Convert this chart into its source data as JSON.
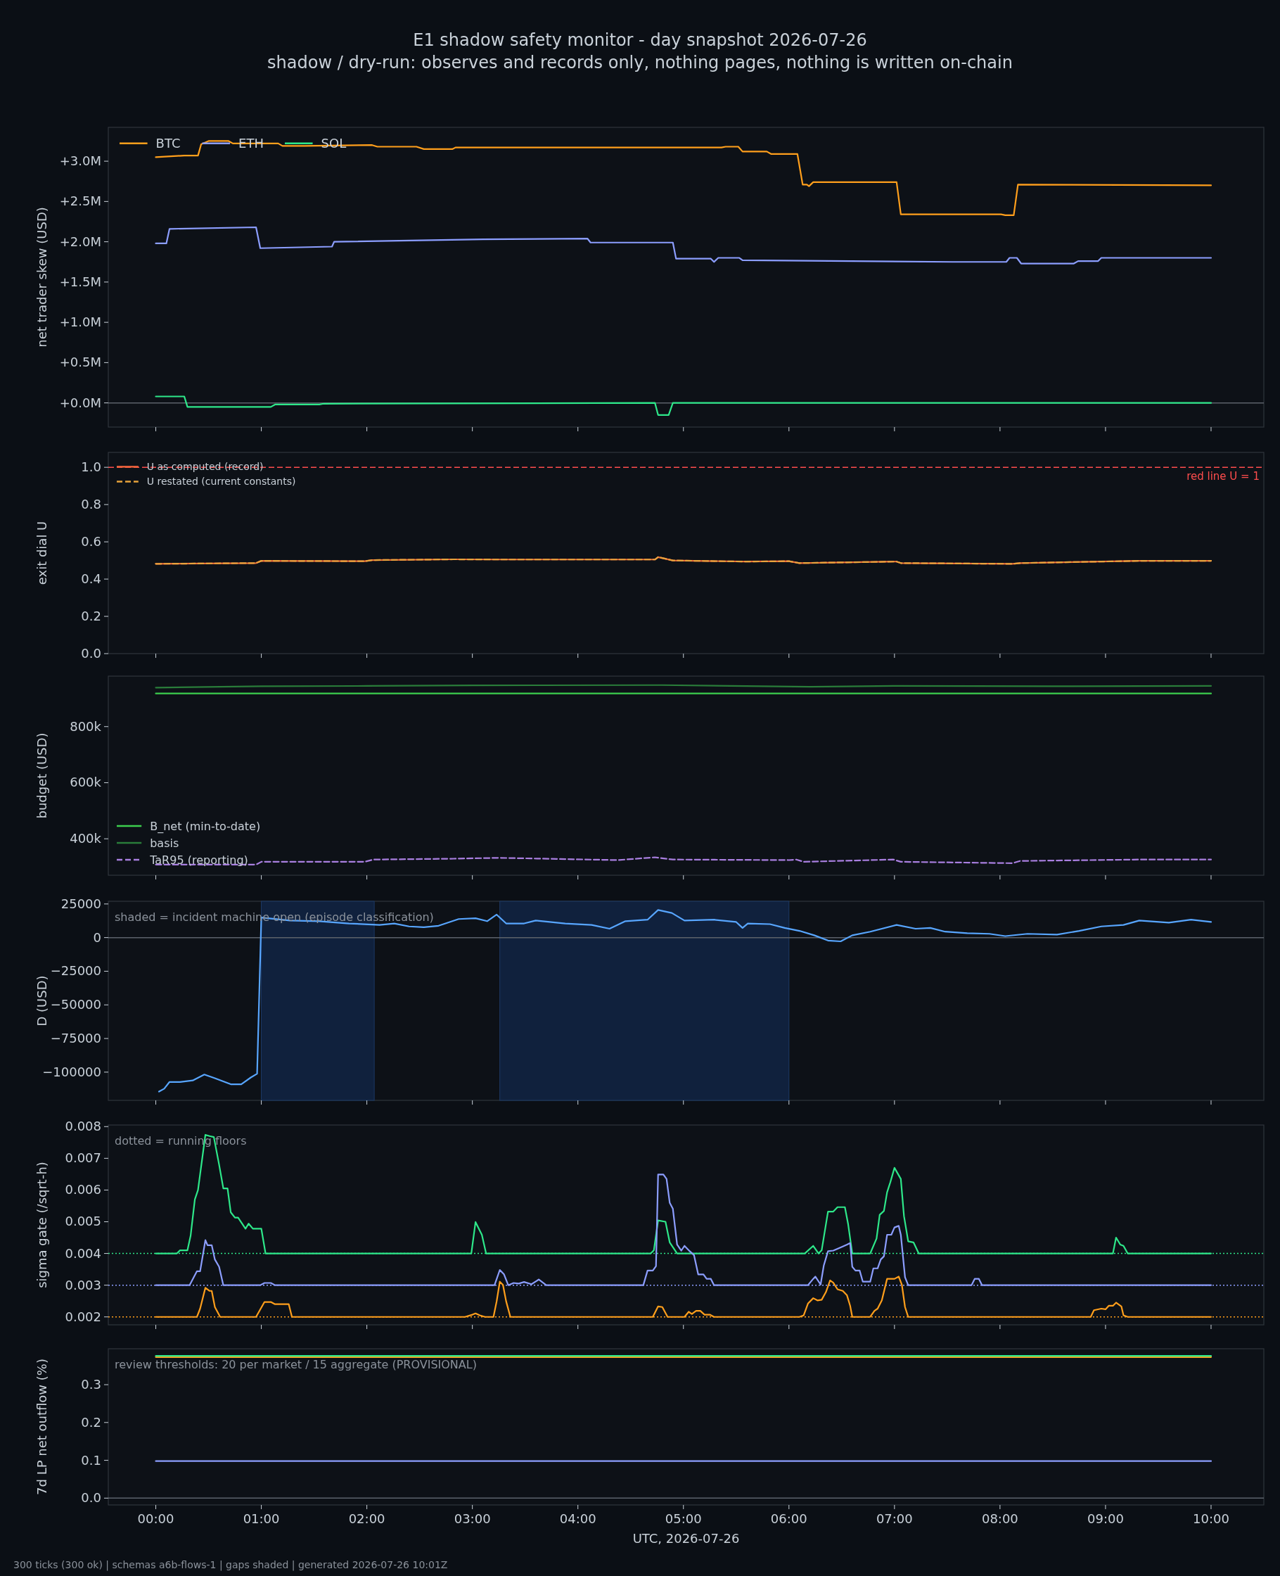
{
  "chart_data": [
    {
      "type": "line",
      "title": "E1 shadow safety monitor - day snapshot 2026-07-26",
      "subtitle": "shadow / dry-run: observes and records only, nothing pages, nothing is written on-chain",
      "ylabel": "net trader skew (USD)",
      "legend": "top left",
      "tick_labels": "y",
      "xlim": [
        -0.45,
        10.5
      ],
      "xticks": [
        {
          "value": 0,
          "label": null
        },
        {
          "value": 1,
          "label": null
        },
        {
          "value": 2,
          "label": null
        },
        {
          "value": 3,
          "label": null
        },
        {
          "value": 4,
          "label": null
        },
        {
          "value": 5,
          "label": null
        },
        {
          "value": 6,
          "label": null
        },
        {
          "value": 7,
          "label": null
        },
        {
          "value": 8,
          "label": null
        },
        {
          "value": 9,
          "label": null
        },
        {
          "value": 10,
          "label": null
        }
      ],
      "ylim": [
        -300000,
        3420000
      ],
      "yticks": [
        {
          "value": 0,
          "label": "+0.0M"
        },
        {
          "value": 500000,
          "label": "+0.5M"
        },
        {
          "value": 1000000,
          "label": "+1.0M"
        },
        {
          "value": 1500000,
          "label": "+1.5M"
        },
        {
          "value": 2000000,
          "label": "+2.0M"
        },
        {
          "value": 2500000,
          "label": "+2.5M"
        },
        {
          "value": 3000000,
          "label": "+3.0M"
        }
      ],
      "ref_lines": [
        {
          "axis": "y",
          "value": 0,
          "color": "#5c626b",
          "line_style": "solid"
        }
      ],
      "series": [
        {
          "name": "BTC",
          "color": "#ff9f1c",
          "x": [
            0,
            0.27,
            0.4,
            0.43,
            0.5,
            0.69,
            0.73,
            1.16,
            1.2,
            1.41,
            2.05,
            2.1,
            2.47,
            2.54,
            2.81,
            2.84,
            5.36,
            5.4,
            5.52,
            5.56,
            5.79,
            5.83,
            6.08,
            6.13,
            6.17,
            6.19,
            6.23,
            7.02,
            7.06,
            8.01,
            8.05,
            8.13,
            8.17,
            10
          ],
          "values": [
            3050000,
            3070000,
            3070000,
            3210000,
            3250000,
            3250000,
            3220000,
            3220000,
            3190000,
            3190000,
            3200000,
            3180000,
            3180000,
            3150000,
            3150000,
            3170000,
            3170000,
            3180000,
            3180000,
            3120000,
            3120000,
            3090000,
            3090000,
            2710000,
            2710000,
            2690000,
            2740000,
            2740000,
            2340000,
            2340000,
            2330000,
            2330000,
            2710000,
            2700000
          ]
        },
        {
          "name": "ETH",
          "color": "#8c9eff",
          "x": [
            0,
            0.1,
            0.13,
            0.95,
            0.99,
            1.67,
            1.69,
            3.1,
            4.09,
            4.12,
            4.9,
            4.93,
            5.26,
            5.29,
            5.33,
            5.53,
            5.56,
            7.55,
            8.06,
            8.09,
            8.16,
            8.2,
            8.7,
            8.74,
            8.93,
            8.96,
            10
          ],
          "values": [
            1980000,
            1980000,
            2160000,
            2180000,
            1920000,
            1940000,
            2000000,
            2030000,
            2040000,
            1990000,
            1990000,
            1790000,
            1790000,
            1750000,
            1800000,
            1800000,
            1770000,
            1750000,
            1750000,
            1800000,
            1800000,
            1730000,
            1730000,
            1760000,
            1760000,
            1800000,
            1800000
          ]
        },
        {
          "name": "SOL",
          "color": "#2ee88a",
          "x": [
            0,
            0.27,
            0.3,
            1.09,
            1.13,
            1.55,
            1.59,
            4.73,
            4.76,
            4.86,
            4.9,
            10
          ],
          "values": [
            80000,
            80000,
            -50000,
            -50000,
            -20000,
            -20000,
            -10000,
            0,
            -150000,
            -150000,
            0,
            0
          ]
        }
      ]
    },
    {
      "type": "line",
      "ylabel": "exit dial U",
      "legend": "top left",
      "tick_labels": "y",
      "xlim": [
        -0.45,
        10.5
      ],
      "xticks": [
        {
          "value": 0,
          "label": null
        },
        {
          "value": 1,
          "label": null
        },
        {
          "value": 2,
          "label": null
        },
        {
          "value": 3,
          "label": null
        },
        {
          "value": 4,
          "label": null
        },
        {
          "value": 5,
          "label": null
        },
        {
          "value": 6,
          "label": null
        },
        {
          "value": 7,
          "label": null
        },
        {
          "value": 8,
          "label": null
        },
        {
          "value": 9,
          "label": null
        },
        {
          "value": 10,
          "label": null
        }
      ],
      "ylim": [
        0,
        1.08
      ],
      "yticks": [
        {
          "value": 0,
          "label": "0.0"
        },
        {
          "value": 0.2,
          "label": "0.2"
        },
        {
          "value": 0.4,
          "label": "0.4"
        },
        {
          "value": 0.6,
          "label": "0.6"
        },
        {
          "value": 0.8,
          "label": "0.8"
        },
        {
          "value": 1,
          "label": "1.0"
        }
      ],
      "ref_lines": [
        {
          "axis": "y",
          "value": 1,
          "label": "red line U = 1",
          "color": "#ff4d4d",
          "line_style": "dashed"
        }
      ],
      "series": [
        {
          "name": "U as computed (record)",
          "color": "#f0643c",
          "line_style": "solid",
          "x": [
            0,
            0.95,
            1.0,
            1.98,
            2.05,
            2.82,
            3.25,
            4.73,
            4.76,
            4.9,
            5.58,
            6.0,
            6.1,
            7.02,
            7.06,
            8.12,
            8.19,
            9.32,
            10
          ],
          "values": [
            0.482,
            0.486,
            0.498,
            0.496,
            0.502,
            0.506,
            0.505,
            0.505,
            0.518,
            0.5,
            0.494,
            0.496,
            0.486,
            0.494,
            0.486,
            0.482,
            0.486,
            0.498,
            0.498
          ]
        },
        {
          "name": "U restated (current constants)",
          "color": "#e8a33c",
          "line_style": "dashed",
          "x": [
            0,
            0.95,
            1.0,
            1.98,
            2.05,
            2.82,
            3.25,
            4.73,
            4.76,
            4.9,
            5.58,
            6.0,
            6.1,
            7.02,
            7.06,
            8.12,
            8.19,
            9.32,
            10
          ],
          "values": [
            0.482,
            0.486,
            0.498,
            0.496,
            0.502,
            0.506,
            0.505,
            0.505,
            0.518,
            0.5,
            0.494,
            0.496,
            0.486,
            0.494,
            0.486,
            0.482,
            0.486,
            0.498,
            0.498
          ]
        }
      ]
    },
    {
      "type": "line",
      "ylabel": "budget (USD)",
      "legend": "bottom left",
      "tick_labels": "y",
      "xlim": [
        -0.45,
        10.5
      ],
      "xticks": [
        {
          "value": 0,
          "label": null
        },
        {
          "value": 1,
          "label": null
        },
        {
          "value": 2,
          "label": null
        },
        {
          "value": 3,
          "label": null
        },
        {
          "value": 4,
          "label": null
        },
        {
          "value": 5,
          "label": null
        },
        {
          "value": 6,
          "label": null
        },
        {
          "value": 7,
          "label": null
        },
        {
          "value": 8,
          "label": null
        },
        {
          "value": 9,
          "label": null
        },
        {
          "value": 10,
          "label": null
        }
      ],
      "ylim": [
        270000,
        980000
      ],
      "yticks": [
        {
          "value": 400000,
          "label": "400k"
        },
        {
          "value": 600000,
          "label": "600k"
        },
        {
          "value": 800000,
          "label": "800k"
        }
      ],
      "series": [
        {
          "name": "B_net (min-to-date)",
          "color": "#3ccf4e",
          "line_style": "solid",
          "x": [
            0,
            10
          ],
          "values": [
            918000,
            918000
          ]
        },
        {
          "name": "basis",
          "color": "#2a7d3a",
          "line_style": "solid",
          "x": [
            0,
            1,
            2,
            3,
            4.8,
            6.2,
            7,
            8.5,
            10
          ],
          "values": [
            939000,
            944000,
            945000,
            947000,
            948000,
            942000,
            945000,
            944000,
            945000
          ]
        },
        {
          "name": "TaR95 (reporting)",
          "color": "#a97fe0",
          "line_style": "dashed",
          "x": [
            0,
            0.95,
            1.0,
            1.98,
            2.06,
            2.82,
            3.25,
            4.38,
            4.73,
            4.9,
            6.0,
            6.07,
            6.14,
            6.99,
            7.06,
            8.12,
            8.19,
            9.32,
            10
          ],
          "values": [
            308000,
            308000,
            318000,
            318000,
            326000,
            329000,
            332000,
            324000,
            334000,
            326000,
            324000,
            326000,
            318000,
            326000,
            318000,
            313000,
            321000,
            326000,
            326000
          ]
        }
      ]
    },
    {
      "type": "line",
      "ylabel": "D (USD)",
      "tick_labels": "y",
      "annotations": [
        "shaded = incident machine open (episode classification)"
      ],
      "xlim": [
        -0.45,
        10.5
      ],
      "xticks": [
        {
          "value": 0,
          "label": null
        },
        {
          "value": 1,
          "label": null
        },
        {
          "value": 2,
          "label": null
        },
        {
          "value": 3,
          "label": null
        },
        {
          "value": 4,
          "label": null
        },
        {
          "value": 5,
          "label": null
        },
        {
          "value": 6,
          "label": null
        },
        {
          "value": 7,
          "label": null
        },
        {
          "value": 8,
          "label": null
        },
        {
          "value": 9,
          "label": null
        },
        {
          "value": 10,
          "label": null
        }
      ],
      "ylim": [
        -121000,
        27000
      ],
      "yticks": [
        {
          "value": -100000,
          "label": "−100000"
        },
        {
          "value": -75000,
          "label": "−75000"
        },
        {
          "value": -50000,
          "label": "−50000"
        },
        {
          "value": -25000,
          "label": "−25000"
        },
        0,
        25000
      ],
      "bands": [
        {
          "axis": "x",
          "from": 1.0,
          "to": 2.07,
          "color": "#10213d"
        },
        {
          "axis": "x",
          "from": 3.26,
          "to": 6.0,
          "color": "#10213d"
        }
      ],
      "ref_lines": [
        {
          "axis": "y",
          "value": 0,
          "color": "#5c626b",
          "line_style": "solid"
        }
      ],
      "series": [
        {
          "color": "#58a6ff",
          "x": [
            0.03,
            0.08,
            0.13,
            0.23,
            0.35,
            0.46,
            0.56,
            0.71,
            0.81,
            0.9,
            0.96,
            1.0,
            1.27,
            1.55,
            1.83,
            2.12,
            2.26,
            2.4,
            2.54,
            2.68,
            2.87,
            3.03,
            3.14,
            3.23,
            3.32,
            3.49,
            3.6,
            3.88,
            4.13,
            4.3,
            4.45,
            4.66,
            4.76,
            4.89,
            5.01,
            5.29,
            5.5,
            5.56,
            5.61,
            5.82,
            5.96,
            6.1,
            6.24,
            6.37,
            6.49,
            6.6,
            6.77,
            7.02,
            7.2,
            7.34,
            7.48,
            7.69,
            7.9,
            8.05,
            8.26,
            8.54,
            8.75,
            8.96,
            9.17,
            9.32,
            9.6,
            9.81,
            10
          ],
          "values": [
            -114500,
            -112300,
            -107300,
            -107300,
            -106200,
            -101800,
            -104500,
            -109000,
            -109000,
            -104000,
            -101200,
            14900,
            12700,
            12200,
            10500,
            9400,
            10500,
            8300,
            7700,
            8800,
            13800,
            14400,
            12200,
            17100,
            10500,
            10500,
            12700,
            10500,
            9400,
            6600,
            12200,
            13300,
            20500,
            18300,
            12700,
            13300,
            11600,
            7200,
            10500,
            10000,
            7200,
            5000,
            1700,
            -2200,
            -2800,
            1700,
            4400,
            9400,
            6600,
            7200,
            4400,
            3300,
            2800,
            1100,
            2800,
            2200,
            5000,
            8300,
            9400,
            12700,
            11100,
            13300,
            11600
          ]
        }
      ]
    },
    {
      "type": "line",
      "ylabel": "sigma gate (/sqrt-h)",
      "tick_labels": "y",
      "annotations": [
        "dotted = running floors"
      ],
      "xlim": [
        -0.45,
        10.5
      ],
      "xticks": [
        {
          "value": 0,
          "label": null
        },
        {
          "value": 1,
          "label": null
        },
        {
          "value": 2,
          "label": null
        },
        {
          "value": 3,
          "label": null
        },
        {
          "value": 4,
          "label": null
        },
        {
          "value": 5,
          "label": null
        },
        {
          "value": 6,
          "label": null
        },
        {
          "value": 7,
          "label": null
        },
        {
          "value": 8,
          "label": null
        },
        {
          "value": 9,
          "label": null
        },
        {
          "value": 10,
          "label": null
        }
      ],
      "ylim": [
        0.00175,
        0.00805
      ],
      "yticks": [
        0.002,
        0.003,
        0.004,
        0.005,
        0.006,
        0.007,
        0.008
      ],
      "ref_lines": [
        {
          "axis": "y",
          "value": 0.004,
          "color": "#2ee88a",
          "line_style": "dotted"
        },
        {
          "axis": "y",
          "value": 0.003,
          "color": "#8c9eff",
          "line_style": "dotted"
        },
        {
          "axis": "y",
          "value": 0.002,
          "color": "#ff9f1c",
          "line_style": "dotted"
        }
      ],
      "series": [
        {
          "color": "#2ee88a",
          "x": [
            0,
            0.2,
            0.23,
            0.3,
            0.33,
            0.37,
            0.4,
            0.47,
            0.51,
            0.55,
            0.6,
            0.64,
            0.68,
            0.71,
            0.75,
            0.78,
            0.85,
            0.88,
            0.92,
            1.0,
            1.04,
            2.99,
            3.03,
            3.09,
            3.13,
            4.69,
            4.72,
            4.76,
            4.83,
            4.87,
            4.94,
            6.15,
            6.23,
            6.28,
            6.31,
            6.37,
            6.42,
            6.46,
            6.53,
            6.56,
            6.6,
            6.77,
            6.83,
            6.86,
            6.9,
            6.93,
            6.96,
            7.0,
            7.06,
            7.09,
            7.13,
            7.18,
            7.23,
            9.07,
            9.1,
            9.14,
            9.17,
            9.21,
            10
          ],
          "values": [
            0.004,
            0.004,
            0.0041,
            0.0041,
            0.00456,
            0.0057,
            0.006,
            0.00774,
            0.0077,
            0.00767,
            0.0068,
            0.00605,
            0.00605,
            0.0053,
            0.00513,
            0.00513,
            0.00478,
            0.00494,
            0.00478,
            0.00478,
            0.004,
            0.004,
            0.00499,
            0.00459,
            0.004,
            0.004,
            0.0041,
            0.00504,
            0.005,
            0.00435,
            0.004,
            0.004,
            0.00424,
            0.004,
            0.0041,
            0.00532,
            0.00532,
            0.00546,
            0.00546,
            0.00494,
            0.004,
            0.004,
            0.00447,
            0.00522,
            0.00534,
            0.00593,
            0.00624,
            0.0067,
            0.00635,
            0.00518,
            0.00438,
            0.00435,
            0.004,
            0.004,
            0.0045,
            0.00428,
            0.00424,
            0.004,
            0.004
          ]
        },
        {
          "color": "#8c9eff",
          "x": [
            0,
            0.32,
            0.39,
            0.42,
            0.47,
            0.49,
            0.53,
            0.56,
            0.6,
            0.64,
            0.99,
            1.03,
            1.09,
            1.13,
            3.21,
            3.26,
            3.3,
            3.34,
            3.39,
            3.44,
            3.49,
            3.56,
            3.63,
            3.7,
            4.62,
            4.66,
            4.71,
            4.74,
            4.76,
            4.81,
            4.84,
            4.87,
            4.9,
            4.94,
            4.98,
            5.01,
            5.06,
            5.1,
            5.14,
            5.19,
            5.22,
            5.26,
            5.29,
            6.18,
            6.23,
            6.25,
            6.3,
            6.33,
            6.37,
            6.42,
            6.49,
            6.55,
            6.58,
            6.6,
            6.63,
            6.67,
            6.7,
            6.77,
            6.8,
            6.84,
            6.87,
            6.9,
            6.93,
            6.97,
            7.0,
            7.04,
            7.06,
            7.1,
            7.13,
            7.73,
            7.76,
            7.8,
            7.83,
            10
          ],
          "values": [
            0.003,
            0.003,
            0.00344,
            0.00344,
            0.00442,
            0.00426,
            0.00426,
            0.00381,
            0.00358,
            0.003,
            0.003,
            0.00307,
            0.00307,
            0.003,
            0.003,
            0.00348,
            0.00334,
            0.003,
            0.00307,
            0.00305,
            0.0031,
            0.00303,
            0.00318,
            0.003,
            0.003,
            0.00346,
            0.00346,
            0.0036,
            0.00649,
            0.00649,
            0.00635,
            0.0056,
            0.00541,
            0.00428,
            0.00409,
            0.00424,
            0.00407,
            0.00395,
            0.00334,
            0.00334,
            0.0032,
            0.0032,
            0.003,
            0.003,
            0.0032,
            0.00327,
            0.00302,
            0.00362,
            0.00407,
            0.00409,
            0.00419,
            0.00428,
            0.00433,
            0.00358,
            0.00346,
            0.00346,
            0.00311,
            0.00311,
            0.00353,
            0.00353,
            0.00381,
            0.00391,
            0.00459,
            0.00459,
            0.00482,
            0.00487,
            0.00459,
            0.00325,
            0.003,
            0.003,
            0.0032,
            0.0032,
            0.003,
            0.003
          ]
        },
        {
          "color": "#ff9f1c",
          "x": [
            0,
            0.39,
            0.42,
            0.47,
            0.51,
            0.53,
            0.56,
            0.61,
            0.95,
            1.03,
            1.09,
            1.13,
            1.26,
            1.29,
            2.93,
            3.0,
            3.03,
            3.07,
            3.12,
            3.2,
            3.23,
            3.26,
            3.29,
            3.32,
            3.36,
            4.71,
            4.76,
            4.8,
            4.85,
            5.01,
            5.05,
            5.08,
            5.12,
            5.16,
            5.2,
            5.25,
            5.29,
            6.1,
            6.14,
            6.18,
            6.23,
            6.27,
            6.31,
            6.35,
            6.39,
            6.42,
            6.46,
            6.51,
            6.55,
            6.58,
            6.6,
            6.77,
            6.81,
            6.84,
            6.88,
            6.93,
            7.0,
            7.04,
            7.07,
            7.1,
            7.13,
            8.86,
            8.89,
            8.96,
            9.0,
            9.03,
            9.07,
            9.1,
            9.15,
            9.17,
            9.21,
            10
          ],
          "values": [
            0.002,
            0.002,
            0.00226,
            0.00292,
            0.00282,
            0.00282,
            0.00231,
            0.002,
            0.002,
            0.00247,
            0.00247,
            0.0024,
            0.0024,
            0.002,
            0.002,
            0.00207,
            0.00211,
            0.00205,
            0.002,
            0.002,
            0.00249,
            0.00311,
            0.00301,
            0.00249,
            0.002,
            0.002,
            0.00233,
            0.00231,
            0.002,
            0.002,
            0.00216,
            0.00209,
            0.00219,
            0.00219,
            0.00207,
            0.00207,
            0.002,
            0.002,
            0.00205,
            0.00242,
            0.00259,
            0.00252,
            0.00254,
            0.00278,
            0.00315,
            0.00308,
            0.00287,
            0.00282,
            0.00268,
            0.00235,
            0.002,
            0.002,
            0.00219,
            0.00226,
            0.00252,
            0.0032,
            0.0032,
            0.00327,
            0.00301,
            0.00231,
            0.002,
            0.002,
            0.00221,
            0.00226,
            0.00224,
            0.00235,
            0.00235,
            0.00245,
            0.00233,
            0.00205,
            0.002,
            0.002
          ]
        }
      ]
    },
    {
      "type": "line",
      "ylabel": "7d LP net outflow (%)",
      "xlabel": "UTC, 2026-07-26",
      "annotations": [
        "review thresholds: 20 per market / 15 aggregate (PROVISIONAL)",
        "300 ticks (300 ok) | schemas a6b-flows-1 | gaps shaded | generated 2026-07-26 10:01Z"
      ],
      "xlim": [
        -0.45,
        10.5
      ],
      "xticks": [
        {
          "value": 0,
          "label": "00:00"
        },
        {
          "value": 1,
          "label": "01:00"
        },
        {
          "value": 2,
          "label": "02:00"
        },
        {
          "value": 3,
          "label": "03:00"
        },
        {
          "value": 4,
          "label": "04:00"
        },
        {
          "value": 5,
          "label": "05:00"
        },
        {
          "value": 6,
          "label": "06:00"
        },
        {
          "value": 7,
          "label": "07:00"
        },
        {
          "value": 8,
          "label": "08:00"
        },
        {
          "value": 9,
          "label": "09:00"
        },
        {
          "value": 10,
          "label": "10:00"
        }
      ],
      "ylim": [
        -0.018,
        0.395
      ],
      "yticks": [
        {
          "value": 0,
          "label": "0.0"
        },
        {
          "value": 0.1,
          "label": "0.1"
        },
        {
          "value": 0.2,
          "label": "0.2"
        },
        {
          "value": 0.3,
          "label": "0.3"
        }
      ],
      "ref_lines": [
        {
          "axis": "y",
          "value": 0,
          "color": "#5c626b",
          "line_style": "solid"
        }
      ],
      "series": [
        {
          "color": "#ff9f1c",
          "x": [
            0,
            10
          ],
          "values": [
            0.373,
            0.373
          ]
        },
        {
          "color": "#2ee88a",
          "x": [
            0,
            10
          ],
          "values": [
            0.376,
            0.376
          ]
        },
        {
          "color": "#8c9eff",
          "x": [
            0,
            10
          ],
          "values": [
            0.098,
            0.098
          ]
        }
      ]
    }
  ]
}
